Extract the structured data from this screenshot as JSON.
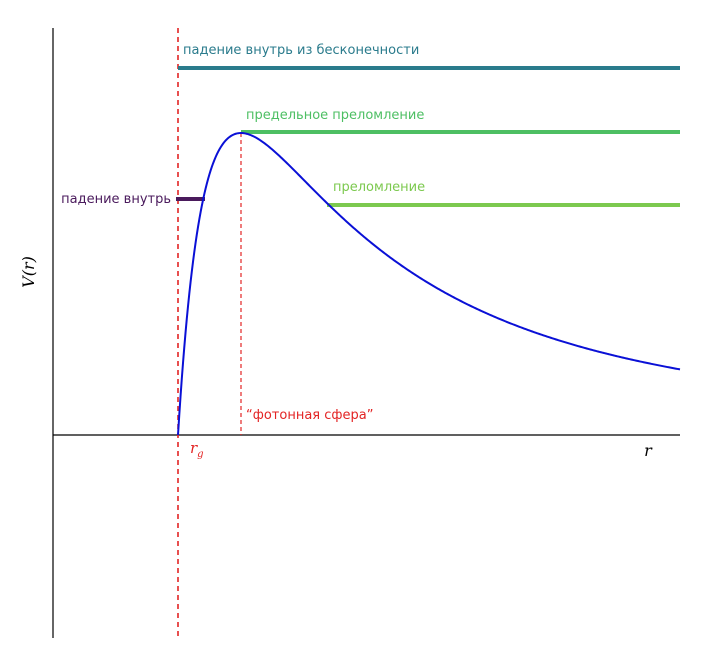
{
  "diagram": {
    "y_axis_label": "V(r)",
    "x_axis_label": "r",
    "rg_label_base": "r",
    "rg_label_sub": "g",
    "photon_sphere_label": "“фотонная сфера”",
    "levels": [
      {
        "name": "infall-from-infinity",
        "label": "падение внутрь из бесконечности",
        "color": "#2a7b8c"
      },
      {
        "name": "critical-refraction",
        "label": "предельное преломление",
        "color": "#4dbf63"
      },
      {
        "name": "refraction",
        "label": "преломление",
        "color": "#7cc94f"
      },
      {
        "name": "infall",
        "label": "падение внутрь",
        "color": "#4a1a5c"
      }
    ],
    "colors": {
      "potential_curve": "#0a10d6",
      "event_horizon": "#e32424",
      "axes": "#000000"
    }
  }
}
